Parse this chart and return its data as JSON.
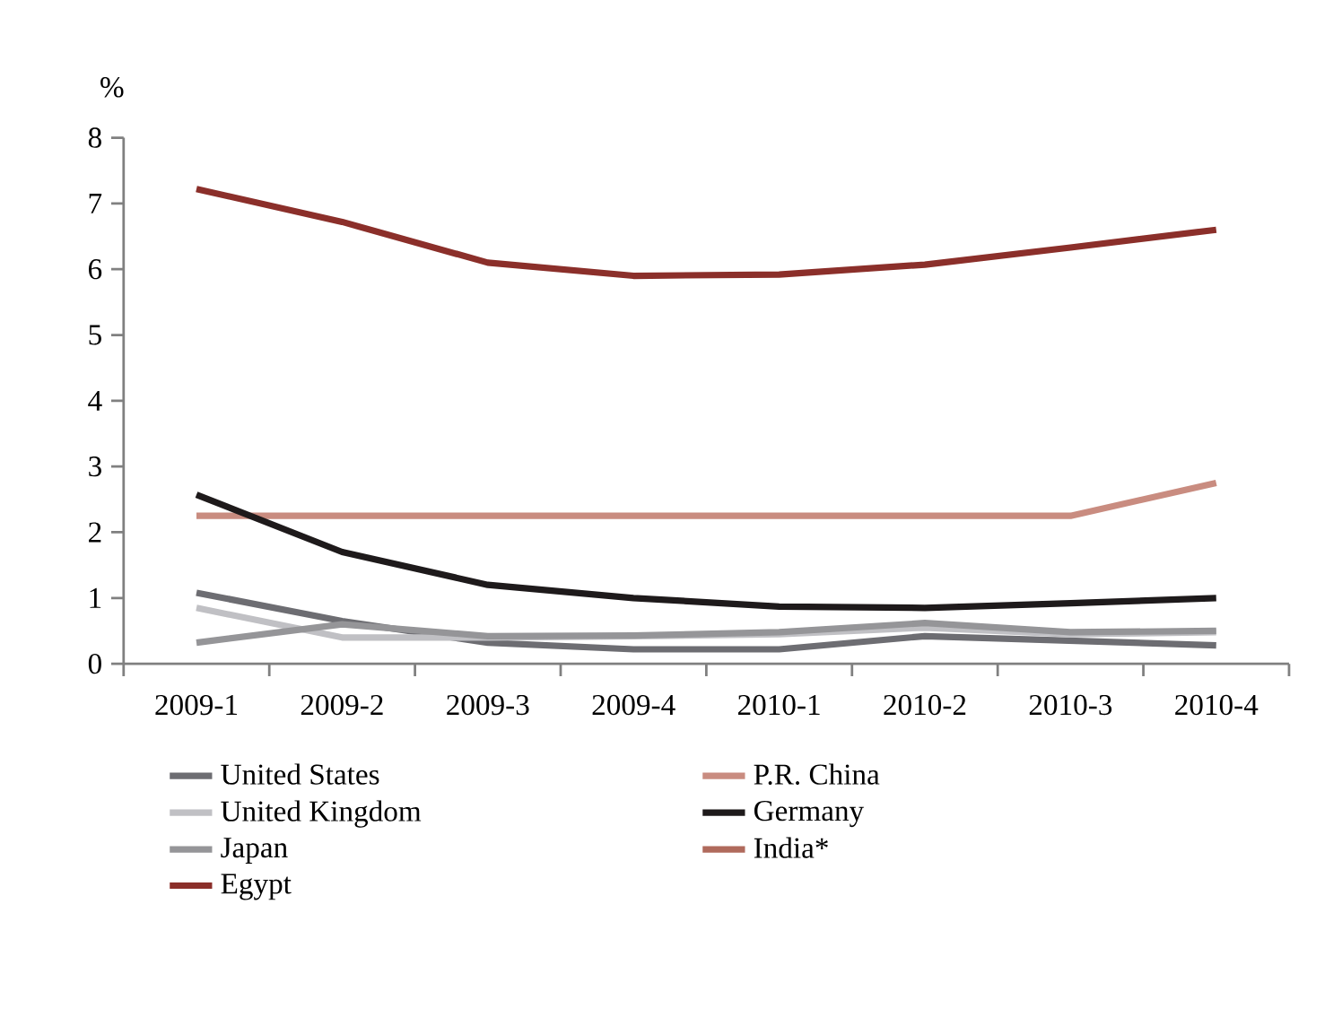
{
  "chart_data": {
    "type": "line",
    "ylabel": "%",
    "categories": [
      "2009-1",
      "2009-2",
      "2009-3",
      "2009-4",
      "2010-1",
      "2010-2",
      "2010-3",
      "2010-4"
    ],
    "ylim": [
      0,
      8
    ],
    "yticks": [
      0,
      1,
      2,
      3,
      4,
      5,
      6,
      7,
      8
    ],
    "legend": "bottom",
    "grid": false,
    "marker": "none",
    "line_style": "solid",
    "series": [
      {
        "name": "United States",
        "color": "#6d6d72",
        "values": [
          1.08,
          0.65,
          0.32,
          0.22,
          0.22,
          0.42,
          0.35,
          0.28
        ]
      },
      {
        "name": "P.R. China",
        "color": "#c98c80",
        "values": [
          2.25,
          2.25,
          2.25,
          2.25,
          2.25,
          2.25,
          2.25,
          2.75
        ]
      },
      {
        "name": "United Kingdom",
        "color": "#c0c0c4",
        "values": [
          0.85,
          0.4,
          0.4,
          0.42,
          0.45,
          0.55,
          0.45,
          0.48
        ]
      },
      {
        "name": "Germany",
        "color": "#1e1a1b",
        "values": [
          2.57,
          1.7,
          1.2,
          1.0,
          0.87,
          0.85,
          0.92,
          1.0
        ]
      },
      {
        "name": "Japan",
        "color": "#959598",
        "values": [
          0.32,
          0.6,
          0.42,
          0.43,
          0.48,
          0.62,
          0.48,
          0.5
        ]
      },
      {
        "name": "India*",
        "color": "#b06a5c",
        "values": [
          null,
          null,
          null,
          null,
          null,
          null,
          null,
          null
        ]
      },
      {
        "name": "Egypt",
        "color": "#8b2f2a",
        "values": [
          7.22,
          6.72,
          6.1,
          5.9,
          5.92,
          6.07,
          6.33,
          6.6
        ]
      }
    ]
  }
}
